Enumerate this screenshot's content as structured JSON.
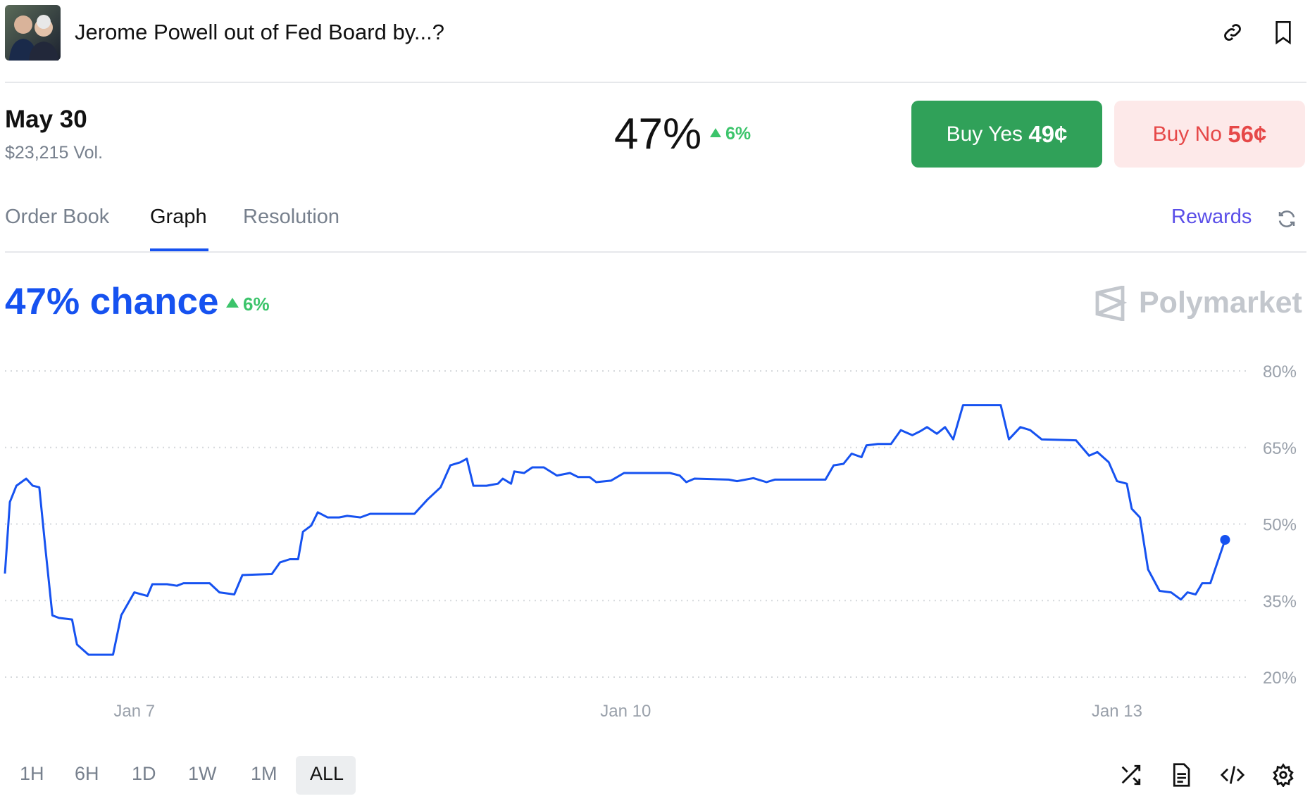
{
  "header": {
    "title": "Jerome Powell out of Fed Board by...?"
  },
  "market": {
    "date": "May 30",
    "volume": "$23,215 Vol.",
    "probability": "47%",
    "change": "6%"
  },
  "buttons": {
    "yes": {
      "label": "Buy Yes",
      "price": "49¢"
    },
    "no": {
      "label": "Buy No",
      "price": "56¢"
    }
  },
  "tabs": [
    "Order Book",
    "Graph",
    "Resolution"
  ],
  "rewards": "Rewards",
  "ranges": [
    "1H",
    "6H",
    "1D",
    "1W",
    "1M",
    "ALL"
  ],
  "chart_data": {
    "type": "line",
    "title": "47% chance",
    "change": "6%",
    "brand": "Polymarket",
    "x": [
      6.21,
      6.24,
      6.28,
      6.34,
      6.38,
      6.42,
      6.46,
      6.5,
      6.54,
      6.62,
      6.65,
      6.72,
      6.87,
      6.92,
      7.0,
      7.08,
      7.11,
      7.2,
      7.26,
      7.3,
      7.46,
      7.52,
      7.61,
      7.66,
      7.84,
      7.89,
      7.95,
      8.0,
      8.03,
      8.08,
      8.12,
      8.18,
      8.25,
      8.3,
      8.38,
      8.44,
      8.71,
      8.79,
      8.87,
      8.93,
      8.99,
      9.03,
      9.07,
      9.15,
      9.22,
      9.25,
      9.3,
      9.32,
      9.38,
      9.43,
      9.5,
      9.58,
      9.66,
      9.71,
      9.78,
      9.82,
      9.91,
      9.99,
      10.27,
      10.33,
      10.37,
      10.42,
      10.63,
      10.68,
      10.78,
      10.86,
      10.91,
      11.22,
      11.27,
      11.33,
      11.38,
      11.44,
      11.47,
      11.54,
      11.62,
      11.68,
      11.75,
      11.8,
      11.84,
      11.9,
      11.95,
      12.0,
      12.06,
      12.29,
      12.34,
      12.41,
      12.47,
      12.54,
      12.75,
      12.83,
      12.88,
      12.95,
      13.0,
      13.06,
      13.09,
      13.14,
      13.19,
      13.26,
      13.33,
      13.39,
      13.43,
      13.48,
      13.52,
      13.57,
      13.62,
      13.66
    ],
    "series": [
      {
        "name": "Yes",
        "color": "#1652f0",
        "values": [
          40.3,
          54.3,
          57.5,
          58.9,
          57.5,
          57.2,
          44.4,
          32.1,
          31.6,
          31.3,
          26.4,
          24.4,
          24.4,
          32.1,
          36.6,
          35.9,
          38.2,
          38.2,
          37.9,
          38.4,
          38.4,
          36.6,
          36.2,
          40.0,
          40.2,
          42.5,
          43.1,
          43.1,
          48.5,
          49.7,
          52.3,
          51.3,
          51.3,
          51.6,
          51.3,
          52.0,
          52.0,
          54.8,
          57.2,
          61.5,
          62.1,
          62.8,
          57.5,
          57.5,
          57.9,
          58.9,
          57.9,
          60.3,
          60.0,
          61.1,
          61.1,
          59.5,
          60.0,
          59.2,
          59.2,
          58.2,
          58.5,
          60.0,
          60.0,
          59.5,
          58.2,
          58.9,
          58.7,
          58.4,
          59.0,
          58.2,
          58.7,
          58.7,
          61.5,
          61.8,
          63.8,
          63.1,
          65.4,
          65.7,
          65.7,
          68.4,
          67.4,
          68.2,
          69.0,
          67.7,
          69.0,
          66.6,
          73.3,
          73.3,
          66.6,
          69.0,
          68.4,
          66.6,
          66.4,
          63.4,
          64.1,
          62.1,
          58.4,
          57.9,
          53.0,
          51.3,
          41.1,
          36.9,
          36.6,
          35.2,
          36.6,
          36.2,
          38.4,
          38.4,
          43.1,
          46.9
        ]
      }
    ],
    "xlim": [
      6.21,
      13.8
    ],
    "xticks": [
      {
        "value": 7,
        "label": "Jan 7"
      },
      {
        "value": 10,
        "label": "Jan 10"
      },
      {
        "value": 13,
        "label": "Jan 13"
      }
    ],
    "ylim": [
      20,
      80
    ],
    "yticks": [
      {
        "value": 20,
        "label": "20%"
      },
      {
        "value": 35,
        "label": "35%"
      },
      {
        "value": 50,
        "label": "50%"
      },
      {
        "value": 65,
        "label": "65%"
      },
      {
        "value": 80,
        "label": "80%"
      }
    ],
    "grid": true
  }
}
